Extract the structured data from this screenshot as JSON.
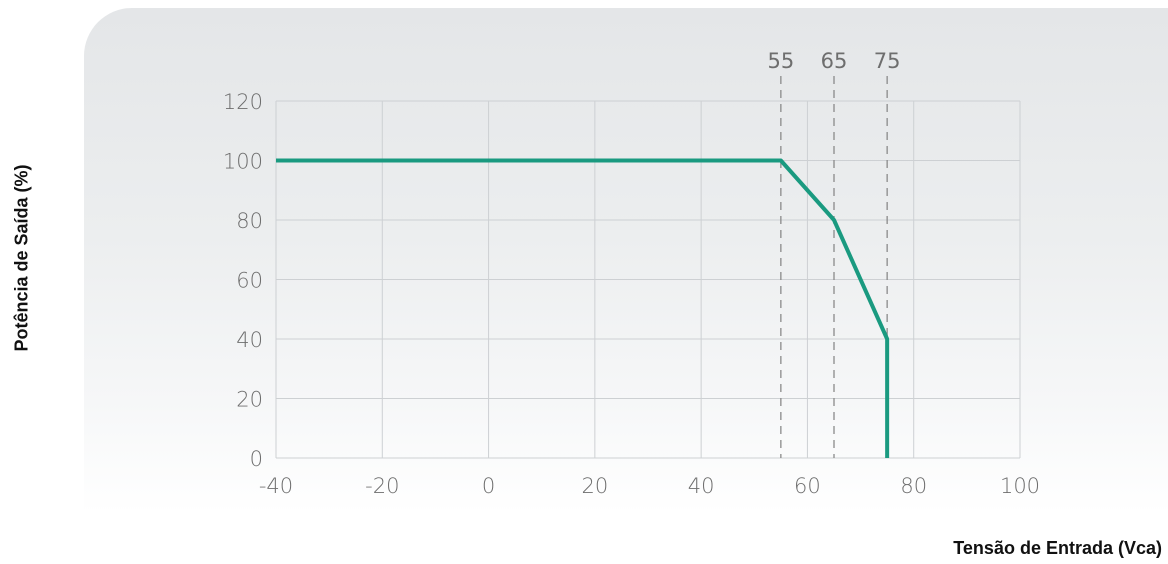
{
  "chart_data": {
    "type": "line",
    "title": "",
    "xlabel": "Tensão de Entrada (Vca)",
    "ylabel": "Potência de Saída (%)",
    "xlim": [
      -40,
      100
    ],
    "ylim": [
      0,
      120
    ],
    "x_ticks": [
      "-40",
      "-20",
      "0",
      "20",
      "40",
      "60",
      "80",
      "100"
    ],
    "y_ticks": [
      "0",
      "20",
      "40",
      "60",
      "80",
      "100",
      "120"
    ],
    "grid": true,
    "series": [
      {
        "x": [
          -40,
          55,
          65,
          75,
          75
        ],
        "y": [
          100,
          100,
          80,
          40,
          0
        ],
        "color": "#1a9a80"
      }
    ],
    "annotations": [
      {
        "label": "55",
        "x": 55
      },
      {
        "label": "65",
        "x": 65
      },
      {
        "label": "75",
        "x": 75
      }
    ]
  }
}
